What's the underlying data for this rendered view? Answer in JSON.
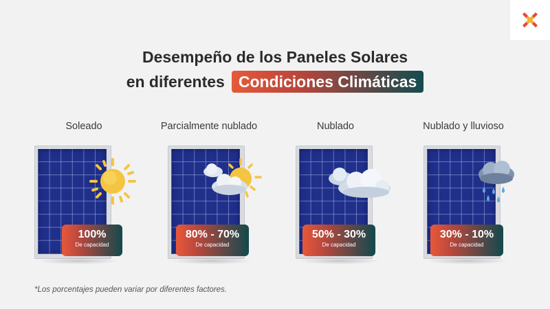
{
  "title": {
    "line1": "Desempeño de los Paneles Solares",
    "line2_prefix": "en diferentes",
    "line2_highlight": "Condiciones Climáticas"
  },
  "conditions": [
    {
      "label": "Soleado",
      "percent": "100%",
      "capacity": "De capacidad",
      "icon": "sun-icon"
    },
    {
      "label": "Parcialmente nublado",
      "percent": "80% - 70%",
      "capacity": "De capacidad",
      "icon": "sun-behind-cloud-icon"
    },
    {
      "label": "Nublado",
      "percent": "50% - 30%",
      "capacity": "De capacidad",
      "icon": "cloud-icon"
    },
    {
      "label": "Nublado y lluvioso",
      "percent": "30% - 10%",
      "capacity": "De capacidad",
      "icon": "rain-cloud-icon"
    }
  ],
  "footnote": "*Los porcentajes pueden variar por diferentes factores.",
  "colors": {
    "accent_orange": "#e8583a",
    "accent_teal": "#12494d",
    "panel_blue": "#1f2f8a",
    "sun_yellow": "#f4c542"
  },
  "logo_icon": "cross-logo-icon"
}
